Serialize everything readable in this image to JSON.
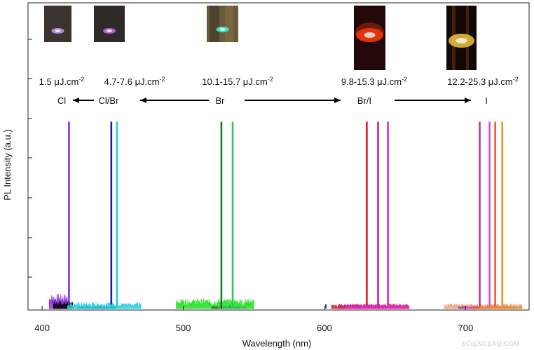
{
  "chart_data": {
    "type": "line",
    "xlabel": "Wavelength (nm)",
    "ylabel": "PL Intensity (a.u.)",
    "xlim": [
      390,
      745
    ],
    "ylim": [
      0,
      1
    ],
    "x_ticks": [
      400,
      500,
      600,
      700
    ],
    "y_ticks": [
      0.2,
      0.4,
      0.6,
      0.8,
      1.0,
      1.2
    ],
    "series": [
      {
        "color": "#8B2BE2",
        "peak_x": 419,
        "peak_y": 0.98,
        "noise_from": 405,
        "noise_to": 419,
        "noise_level": 0.06
      },
      {
        "color": "#000000",
        "peak_x": null,
        "peak_y": 0,
        "noise_from": 408,
        "noise_to": 422,
        "noise_level": 0.03
      },
      {
        "color": "#1a1aa0",
        "peak_x": 449,
        "peak_y": 0.98,
        "noise_from": 425,
        "noise_to": 452,
        "noise_level": 0.01
      },
      {
        "color": "#22d0e0",
        "peak_x": 453,
        "peak_y": 0.98,
        "noise_from": 418,
        "noise_to": 470,
        "noise_level": 0.025
      },
      {
        "color": "#22e022",
        "peak_x": null,
        "peak_y": 0,
        "noise_from": 495,
        "noise_to": 550,
        "noise_level": 0.04
      },
      {
        "color": "#1f7a1f",
        "peak_x": 527,
        "peak_y": 0.98,
        "noise_from": 520,
        "noise_to": 540,
        "noise_level": 0.01
      },
      {
        "color": "#2ac95a",
        "peak_x": 535,
        "peak_y": 0.98,
        "noise_from": 525,
        "noise_to": 545,
        "noise_level": 0.01
      },
      {
        "color": "#e01a2a",
        "peak_x": 630,
        "peak_y": 0.98,
        "noise_from": 605,
        "noise_to": 650,
        "noise_level": 0.015
      },
      {
        "color": "#d02080",
        "peak_x": 638,
        "peak_y": 0.98,
        "noise_from": 610,
        "noise_to": 660,
        "noise_level": 0.02
      },
      {
        "color": "#e82ac0",
        "peak_x": 645,
        "peak_y": 0.98,
        "noise_from": 615,
        "noise_to": 660,
        "noise_level": 0.015
      },
      {
        "color": "#f0a080",
        "peak_x": null,
        "peak_y": 0,
        "noise_from": 685,
        "noise_to": 740,
        "noise_level": 0.02
      },
      {
        "color": "#b04080",
        "peak_x": 710,
        "peak_y": 0.98,
        "noise_from": 695,
        "noise_to": 725,
        "noise_level": 0.01
      },
      {
        "color": "#e050c8",
        "peak_x": 717,
        "peak_y": 0.98,
        "noise_from": 700,
        "noise_to": 730,
        "noise_level": 0.01
      },
      {
        "color": "#e8602a",
        "peak_x": 721,
        "peak_y": 0.98,
        "noise_from": 705,
        "noise_to": 735,
        "noise_level": 0.01
      },
      {
        "color": "#f09030",
        "peak_x": 726,
        "peak_y": 0.98,
        "noise_from": 710,
        "noise_to": 740,
        "noise_level": 0.01
      }
    ],
    "annotations": {
      "fluences": [
        {
          "base": "1.5 μJ.cm",
          "sup": "-2"
        },
        {
          "base": "4.7-7.6 μJ.cm",
          "sup": "-2"
        },
        {
          "base": "10.1-15.7 μJ.cm",
          "sup": "-2"
        },
        {
          "base": "9.8-15.3 μJ.cm",
          "sup": "-2"
        },
        {
          "base": "12.2-25.3 μJ.cm",
          "sup": "-2"
        }
      ],
      "compositions": [
        "Cl",
        "Cl/Br",
        "Br",
        "Br/I",
        "I"
      ]
    },
    "insets": [
      {
        "bg": "#3b3430",
        "glow": "#c8a0ff"
      },
      {
        "bg": "#2e2a28",
        "glow": "#d070ff"
      },
      {
        "bg": "#6a5a3a",
        "glow": "#40ffd8"
      },
      {
        "bg": "#220808",
        "glow": "#ff3a10"
      },
      {
        "bg": "#120805",
        "glow": "#ffd040"
      }
    ],
    "watermark": "SCIENCEAQ.COM"
  }
}
